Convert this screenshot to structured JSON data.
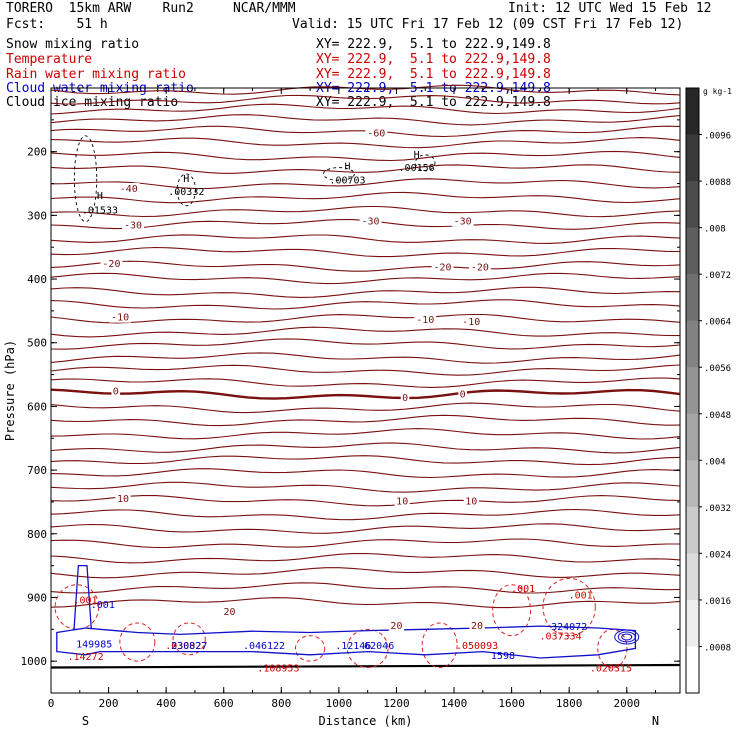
{
  "header": {
    "model": "TORERO  15km ARW    Run2     NCAR/MMM",
    "init": "Init: 12 UTC Wed 15 Feb 12",
    "fcst": "Fcst:    51 h",
    "valid": "Valid: 15 UTC Fri 17 Feb 12 (09 CST Fri 17 Feb 12)"
  },
  "fields": [
    {
      "name": "Snow mixing ratio",
      "xy": "XY= 222.9,  5.1 to 222.9,149.8",
      "color": "#000000"
    },
    {
      "name": "Temperature",
      "xy": "XY= 222.9,  5.1 to 222.9,149.8",
      "color": "#cc0000"
    },
    {
      "name": "Rain water mixing ratio",
      "xy": "XY= 222.9,  5.1 to 222.9,149.8",
      "color": "#cc0000"
    },
    {
      "name": "Cloud water mixing ratio",
      "xy": "XY= 222.9,  5.1 to 222.9,149.8",
      "color": "#0000cc"
    },
    {
      "name": "Cloud ice mixing ratio",
      "xy": "XY= 222.9,  5.1 to 222.9,149.8",
      "color": "#000000"
    }
  ],
  "chart_data": {
    "type": "contour",
    "xlabel": "Distance (km)",
    "ylabel": "Pressure (hPa)",
    "xlim": [
      0,
      2185
    ],
    "ylim": [
      1050,
      100
    ],
    "x_ticks": [
      0,
      200,
      400,
      600,
      800,
      1000,
      1200,
      1400,
      1600,
      1800,
      2000
    ],
    "y_ticks": [
      200,
      300,
      400,
      500,
      600,
      700,
      800,
      900,
      1000
    ],
    "x_end_labels": {
      "left": "S",
      "right": "N"
    },
    "temperature_labels": [
      {
        "text": "-60",
        "x": 1130,
        "p": 170
      },
      {
        "text": "-40",
        "x": 270,
        "p": 257
      },
      {
        "text": "-30",
        "x": 285,
        "p": 314
      },
      {
        "text": "-30",
        "x": 1110,
        "p": 308
      },
      {
        "text": "-30",
        "x": 1430,
        "p": 308
      },
      {
        "text": "-20",
        "x": 210,
        "p": 375
      },
      {
        "text": "-20",
        "x": 1360,
        "p": 380
      },
      {
        "text": "-20",
        "x": 1490,
        "p": 380
      },
      {
        "text": "-10",
        "x": 240,
        "p": 459
      },
      {
        "text": "-10",
        "x": 1300,
        "p": 463
      },
      {
        "text": "-10",
        "x": 1460,
        "p": 466
      },
      {
        "text": "0",
        "x": 225,
        "p": 575
      },
      {
        "text": "0",
        "x": 1230,
        "p": 585
      },
      {
        "text": "0",
        "x": 1430,
        "p": 580
      },
      {
        "text": "10",
        "x": 250,
        "p": 744
      },
      {
        "text": "10",
        "x": 1220,
        "p": 748
      },
      {
        "text": "10",
        "x": 1460,
        "p": 748
      },
      {
        "text": "20",
        "x": 620,
        "p": 921
      },
      {
        "text": "20",
        "x": 1200,
        "p": 943
      },
      {
        "text": "20",
        "x": 1480,
        "p": 943
      }
    ],
    "ice_maxima": [
      {
        "text": ".01533",
        "x": 170,
        "p": 291,
        "hp": 268
      },
      {
        "text": ".00332",
        "x": 470,
        "p": 262,
        "hp": 241
      },
      {
        "text": ".00703",
        "x": 1030,
        "p": 244,
        "hp": 222
      },
      {
        "text": ".00156",
        "x": 1270,
        "p": 224,
        "hp": 204
      }
    ],
    "rain_labels": [
      {
        "text": ".001",
        "x": 120,
        "p": 903,
        "color": "#cc0000"
      },
      {
        "text": ".001",
        "x": 1640,
        "p": 885,
        "color": "#cc0000"
      },
      {
        "text": ".001",
        "x": 1840,
        "p": 895,
        "color": "#cc0000"
      },
      {
        "text": ".14272",
        "x": 120,
        "p": 992,
        "color": "#cc0000"
      },
      {
        "text": ".050093",
        "x": 1480,
        "p": 975,
        "color": "#cc0000"
      },
      {
        "text": ".037334",
        "x": 1770,
        "p": 960,
        "color": "#cc0000"
      },
      {
        "text": ".020315",
        "x": 1945,
        "p": 1010,
        "color": "#cc0000"
      },
      {
        "text": ".108953",
        "x": 790,
        "p": 1010,
        "color": "#cc0000"
      },
      {
        "text": ".030027",
        "x": 470,
        "p": 975,
        "color": "#cc0000"
      }
    ],
    "cloud_labels": [
      {
        "text": ".001",
        "x": 180,
        "p": 910,
        "color": "#0000cc"
      },
      {
        "text": "149985",
        "x": 150,
        "p": 972,
        "color": "#0000cc"
      },
      {
        "text": "230827",
        "x": 480,
        "p": 975,
        "color": "#0000cc"
      },
      {
        "text": ".046122",
        "x": 740,
        "p": 975,
        "color": "#0000cc"
      },
      {
        "text": ".12146",
        "x": 1050,
        "p": 975,
        "color": "#0000cc"
      },
      {
        "text": "62046",
        "x": 1140,
        "p": 975,
        "color": "#0000cc"
      },
      {
        "text": "1598",
        "x": 1570,
        "p": 990,
        "color": "#0000cc"
      },
      {
        "text": "324072",
        "x": 1800,
        "p": 945,
        "color": "#0000cc"
      }
    ],
    "colorbar": {
      "unit": "g kg-1",
      "ticks": [
        ".0096",
        ".0088",
        ".008",
        ".0072",
        ".0064",
        ".0056",
        ".0048",
        ".004",
        ".0032",
        ".0024",
        ".0016",
        ".0008"
      ]
    }
  }
}
